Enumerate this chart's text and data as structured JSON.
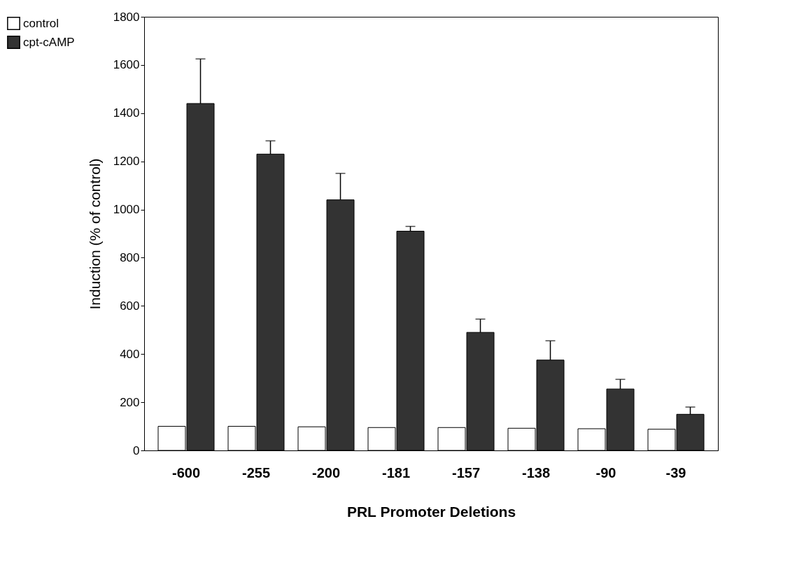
{
  "chart_data": {
    "type": "bar",
    "xlabel": "PRL Promoter Deletions",
    "ylabel": "Induction (% of control)",
    "categories": [
      "-600",
      "-255",
      "-200",
      "-181",
      "-157",
      "-138",
      "-90",
      "-39"
    ],
    "series": [
      {
        "name": "control",
        "color": "#ffffff",
        "values": [
          100,
          100,
          98,
          95,
          95,
          92,
          90,
          88
        ]
      },
      {
        "name": "cpt-cAMP",
        "color": "#333333",
        "values": [
          1440,
          1230,
          1040,
          910,
          490,
          375,
          255,
          150
        ],
        "errors": [
          185,
          55,
          110,
          20,
          55,
          80,
          40,
          30
        ]
      }
    ],
    "ylim": [
      0,
      1800
    ],
    "yticks": [
      0,
      200,
      400,
      600,
      800,
      1000,
      1200,
      1400,
      1600,
      1800
    ],
    "grid": false,
    "legend": "left"
  }
}
